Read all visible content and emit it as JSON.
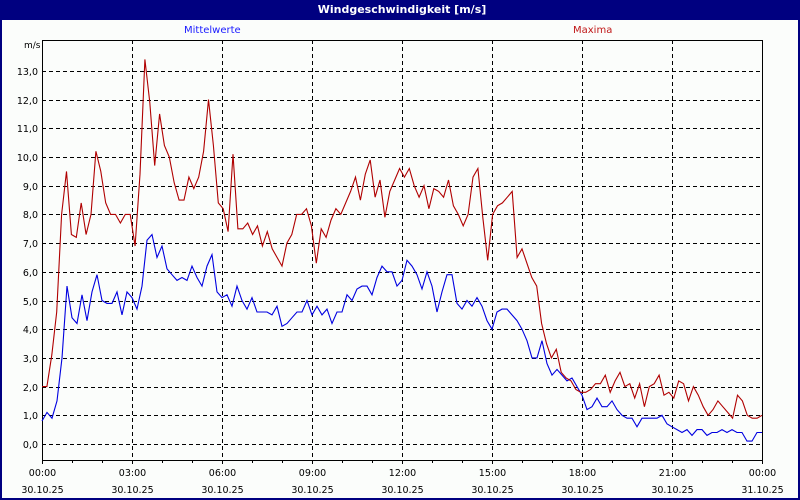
{
  "window": {
    "title": "Windgeschwindigkeit [m/s]"
  },
  "legend": {
    "mean_label": "Mittelwerte",
    "max_label": "Maxima"
  },
  "axis": {
    "unit": "m/s"
  },
  "colors": {
    "title_bg": "#000080",
    "mean": "#0000e0",
    "max": "#b00000",
    "background": "#fbfdfb"
  },
  "chart_data": {
    "type": "line",
    "title": "Windgeschwindigkeit [m/s]",
    "xlabel": "",
    "ylabel": "m/s",
    "ylim": [
      -0.5,
      13.9
    ],
    "yticks": [
      "0,0",
      "1,0",
      "2,0",
      "3,0",
      "4,0",
      "5,0",
      "6,0",
      "7,0",
      "8,0",
      "9,0",
      "10,0",
      "11,0",
      "12,0",
      "13,0"
    ],
    "xticks": [
      {
        "time": "00:00",
        "date": "30.10.25"
      },
      {
        "time": "03:00",
        "date": "30.10.25"
      },
      {
        "time": "06:00",
        "date": "30.10.25"
      },
      {
        "time": "09:00",
        "date": "30.10.25"
      },
      {
        "time": "12:00",
        "date": "30.10.25"
      },
      {
        "time": "15:00",
        "date": "30.10.25"
      },
      {
        "time": "18:00",
        "date": "30.10.25"
      },
      {
        "time": "21:00",
        "date": "30.10.25"
      },
      {
        "time": "00:00",
        "date": "31.10.25"
      }
    ],
    "grid": true,
    "legend_position": "top",
    "x_interval_minutes": 10,
    "series": [
      {
        "name": "Mittelwerte",
        "color": "#0000e0",
        "values": [
          0.8,
          1.1,
          0.9,
          1.5,
          3.0,
          5.5,
          4.4,
          4.2,
          5.2,
          4.3,
          5.3,
          5.9,
          5.0,
          4.9,
          4.9,
          5.3,
          4.5,
          5.3,
          5.1,
          4.7,
          5.5,
          7.1,
          7.3,
          6.5,
          6.9,
          6.1,
          5.9,
          5.7,
          5.8,
          5.7,
          6.2,
          5.8,
          5.5,
          6.2,
          6.6,
          5.3,
          5.1,
          5.2,
          4.8,
          5.5,
          5.0,
          4.7,
          5.1,
          4.6,
          4.6,
          4.6,
          4.5,
          4.8,
          4.1,
          4.2,
          4.4,
          4.6,
          4.6,
          5.0,
          4.5,
          4.8,
          4.5,
          4.7,
          4.2,
          4.6,
          4.6,
          5.2,
          5.0,
          5.4,
          5.5,
          5.5,
          5.2,
          5.8,
          6.2,
          6.0,
          6.0,
          5.5,
          5.7,
          6.4,
          6.2,
          5.9,
          5.4,
          6.0,
          5.5,
          4.6,
          5.3,
          5.9,
          5.9,
          4.9,
          4.7,
          5.0,
          4.8,
          5.1,
          4.8,
          4.3,
          4.0,
          4.6,
          4.7,
          4.7,
          4.5,
          4.3,
          4.0,
          3.6,
          3.0,
          3.0,
          3.6,
          2.8,
          2.4,
          2.6,
          2.4,
          2.2,
          2.3,
          2.0,
          1.7,
          1.2,
          1.3,
          1.6,
          1.3,
          1.3,
          1.5,
          1.2,
          1.0,
          0.9,
          0.9,
          0.6,
          0.9,
          0.9,
          0.9,
          0.9,
          1.0,
          0.7,
          0.6,
          0.5,
          0.4,
          0.5,
          0.3,
          0.5,
          0.5,
          0.3,
          0.4,
          0.4,
          0.5,
          0.4,
          0.5,
          0.4,
          0.4,
          0.1,
          0.1,
          0.4,
          0.4
        ]
      },
      {
        "name": "Maxima",
        "color": "#b00000",
        "values": [
          2.0,
          2.0,
          3.1,
          4.6,
          8.0,
          9.5,
          7.3,
          7.2,
          8.4,
          7.3,
          8.0,
          10.2,
          9.5,
          8.4,
          8.0,
          8.0,
          7.7,
          8.0,
          8.0,
          6.9,
          9.4,
          13.4,
          11.9,
          9.7,
          11.5,
          10.4,
          10.0,
          9.1,
          8.5,
          8.5,
          9.3,
          8.9,
          9.3,
          10.2,
          12.0,
          10.4,
          8.4,
          8.2,
          7.4,
          10.1,
          7.5,
          7.5,
          7.7,
          7.3,
          7.6,
          6.9,
          7.4,
          6.8,
          6.5,
          6.2,
          7.0,
          7.3,
          8.0,
          8.0,
          8.2,
          7.6,
          6.3,
          7.5,
          7.2,
          7.8,
          8.2,
          8.0,
          8.4,
          8.8,
          9.3,
          8.5,
          9.4,
          9.9,
          8.6,
          9.2,
          7.9,
          8.8,
          9.2,
          9.6,
          9.3,
          9.6,
          9.0,
          8.6,
          9.0,
          8.2,
          8.9,
          8.8,
          8.6,
          9.2,
          8.3,
          8.0,
          7.6,
          8.0,
          9.3,
          9.6,
          7.9,
          6.4,
          8.0,
          8.3,
          8.4,
          8.6,
          8.8,
          6.5,
          6.8,
          6.3,
          5.8,
          5.5,
          4.2,
          3.5,
          3.0,
          3.3,
          2.5,
          2.3,
          2.2,
          1.9,
          1.8,
          1.8,
          1.9,
          2.1,
          2.1,
          2.4,
          1.8,
          2.2,
          2.5,
          2.0,
          2.1,
          1.6,
          2.1,
          1.3,
          2.0,
          2.1,
          2.4,
          1.7,
          1.8,
          1.6,
          2.2,
          2.1,
          1.5,
          2.0,
          1.7,
          1.3,
          1.0,
          1.2,
          1.5,
          1.3,
          1.1,
          0.9,
          1.7,
          1.5,
          1.0,
          0.9,
          0.9,
          1.0
        ]
      }
    ]
  }
}
